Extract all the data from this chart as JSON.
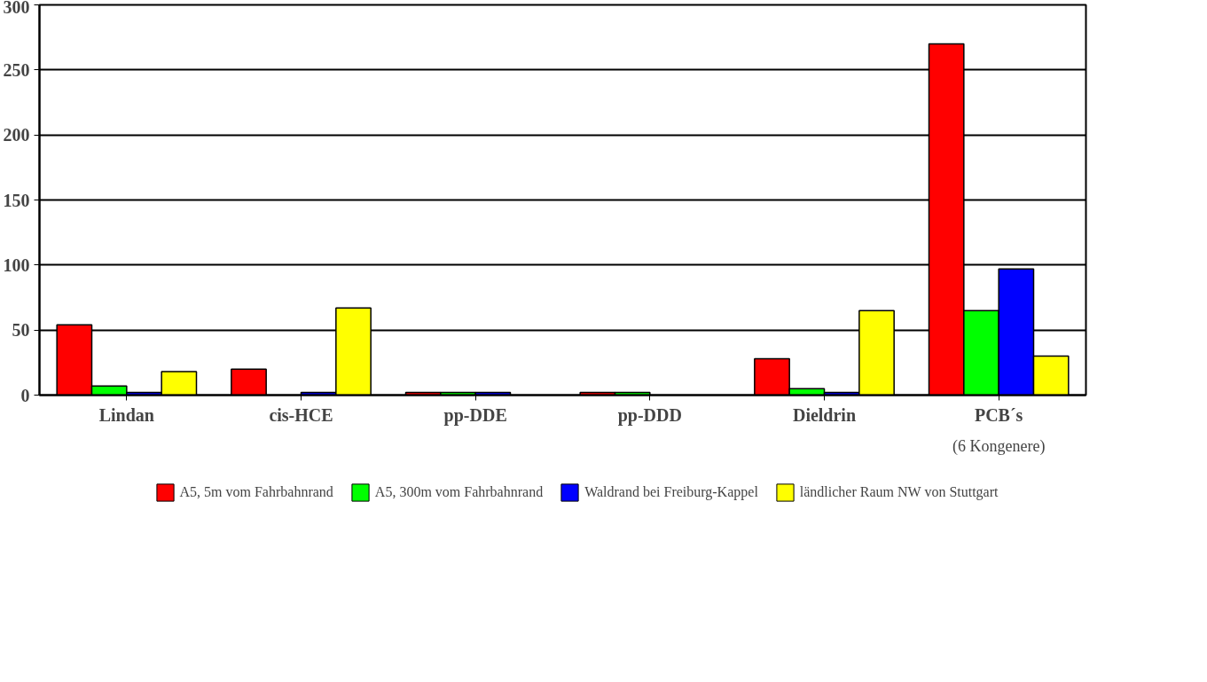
{
  "chart_data": {
    "type": "bar",
    "categories": [
      "Lindan",
      "cis-HCE",
      "pp-DDE",
      "pp-DDD",
      "Dieldrin",
      "PCB´s"
    ],
    "series": [
      {
        "name": "A5, 5m vom Fahrbahnrand",
        "color": "#ff0000",
        "values": [
          54,
          20,
          2,
          2,
          28,
          270
        ]
      },
      {
        "name": "A5, 300m vom Fahrbahnrand",
        "color": "#00ff00",
        "values": [
          7,
          null,
          2,
          2,
          5,
          65
        ]
      },
      {
        "name": "Waldrand bei Freiburg-Kappel",
        "color": "#0000ff",
        "values": [
          2,
          2,
          2,
          null,
          2,
          97
        ]
      },
      {
        "name": "ländlicher Raum NW von Stuttgart",
        "color": "#ffff00",
        "values": [
          18,
          67,
          null,
          null,
          65,
          30
        ]
      }
    ],
    "ylim": [
      0,
      300
    ],
    "yticks": [
      0,
      50,
      100,
      150,
      200,
      250,
      300
    ],
    "grid": "y",
    "legend": "bottom",
    "annotations": [
      "(6 Kongenere)"
    ]
  }
}
